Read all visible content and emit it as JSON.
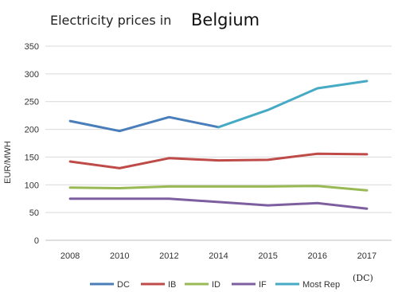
{
  "chart_data": {
    "type": "line",
    "title": "Electricity prices in",
    "title_country": "Belgium",
    "ylabel": "EUR/MWH",
    "xlabel": "",
    "ylim": [
      0,
      350
    ],
    "yticks": [
      "0",
      "50",
      "100",
      "150",
      "200",
      "250",
      "300",
      "350"
    ],
    "categories": [
      "2008",
      "2010",
      "2012",
      "2014",
      "2015",
      "2016",
      "2017"
    ],
    "grid": true,
    "legend_position": "bottom",
    "legend_note": "(DC)",
    "series": [
      {
        "name": "DC",
        "color": "#4a7ebb",
        "values": [
          215,
          197,
          222,
          204,
          null,
          null,
          null
        ]
      },
      {
        "name": "IB",
        "color": "#be4b48",
        "values": [
          142,
          130,
          148,
          144,
          145,
          156,
          155
        ]
      },
      {
        "name": "ID",
        "color": "#98b954",
        "values": [
          95,
          94,
          97,
          97,
          97,
          98,
          90
        ]
      },
      {
        "name": "IF",
        "color": "#7d5fa0",
        "values": [
          75,
          75,
          75,
          69,
          63,
          67,
          57
        ]
      },
      {
        "name": "Most Rep",
        "color": "#46aac5",
        "values": [
          null,
          null,
          null,
          204,
          235,
          274,
          287
        ]
      }
    ]
  }
}
